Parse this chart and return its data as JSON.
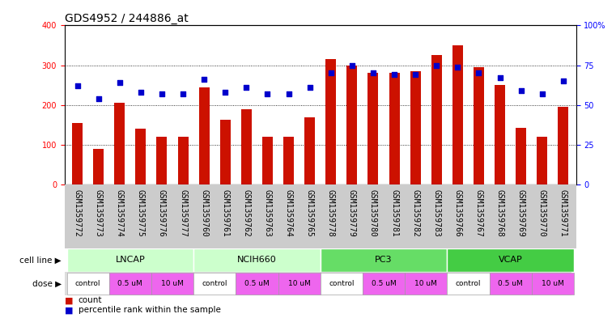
{
  "title": "GDS4952 / 244886_at",
  "samples": [
    "GSM1359772",
    "GSM1359773",
    "GSM1359774",
    "GSM1359775",
    "GSM1359776",
    "GSM1359777",
    "GSM1359760",
    "GSM1359761",
    "GSM1359762",
    "GSM1359763",
    "GSM1359764",
    "GSM1359765",
    "GSM1359778",
    "GSM1359779",
    "GSM1359780",
    "GSM1359781",
    "GSM1359782",
    "GSM1359783",
    "GSM1359766",
    "GSM1359767",
    "GSM1359768",
    "GSM1359769",
    "GSM1359770",
    "GSM1359771"
  ],
  "counts": [
    155,
    90,
    205,
    140,
    120,
    120,
    245,
    163,
    190,
    120,
    120,
    168,
    315,
    300,
    280,
    280,
    285,
    325,
    350,
    295,
    250,
    143,
    120,
    195
  ],
  "percentiles": [
    62,
    54,
    64,
    58,
    57,
    57,
    66,
    58,
    61,
    57,
    57,
    61,
    70,
    75,
    70,
    69,
    69,
    75,
    74,
    70,
    67,
    59,
    57,
    65
  ],
  "cell_lines": [
    {
      "name": "LNCAP",
      "start": 0,
      "end": 5,
      "color": "#ccffcc"
    },
    {
      "name": "NCIH660",
      "start": 6,
      "end": 11,
      "color": "#ccffcc"
    },
    {
      "name": "PC3",
      "start": 12,
      "end": 17,
      "color": "#66dd66"
    },
    {
      "name": "VCAP",
      "start": 18,
      "end": 23,
      "color": "#44cc44"
    }
  ],
  "dose_groups": [
    {
      "name": "control",
      "start": 0,
      "end": 1,
      "color": "#ffffff"
    },
    {
      "name": "0.5 uM",
      "start": 2,
      "end": 3,
      "color": "#ee66ee"
    },
    {
      "name": "10 uM",
      "start": 4,
      "end": 5,
      "color": "#ee66ee"
    },
    {
      "name": "control",
      "start": 6,
      "end": 7,
      "color": "#ffffff"
    },
    {
      "name": "0.5 uM",
      "start": 8,
      "end": 9,
      "color": "#ee66ee"
    },
    {
      "name": "10 uM",
      "start": 10,
      "end": 11,
      "color": "#ee66ee"
    },
    {
      "name": "control",
      "start": 12,
      "end": 13,
      "color": "#ffffff"
    },
    {
      "name": "0.5 uM",
      "start": 14,
      "end": 15,
      "color": "#ee66ee"
    },
    {
      "name": "10 uM",
      "start": 16,
      "end": 17,
      "color": "#ee66ee"
    },
    {
      "name": "control",
      "start": 18,
      "end": 19,
      "color": "#ffffff"
    },
    {
      "name": "0.5 uM",
      "start": 20,
      "end": 21,
      "color": "#ee66ee"
    },
    {
      "name": "10 uM",
      "start": 22,
      "end": 23,
      "color": "#ee66ee"
    }
  ],
  "bar_color": "#cc1100",
  "dot_color": "#0000cc",
  "left_ylim": [
    0,
    400
  ],
  "right_ylim": [
    0,
    100
  ],
  "left_yticks": [
    0,
    100,
    200,
    300,
    400
  ],
  "right_yticks": [
    0,
    25,
    50,
    75,
    100
  ],
  "right_yticklabels": [
    "0",
    "25",
    "50",
    "75",
    "100%"
  ],
  "gridlines_at": [
    100,
    200,
    300
  ],
  "title_fontsize": 10,
  "tick_fontsize": 7,
  "bar_width": 0.5,
  "xtick_bg_color": "#cccccc",
  "legend_items": [
    {
      "color": "#cc1100",
      "label": "count"
    },
    {
      "color": "#0000cc",
      "label": "percentile rank within the sample"
    }
  ]
}
